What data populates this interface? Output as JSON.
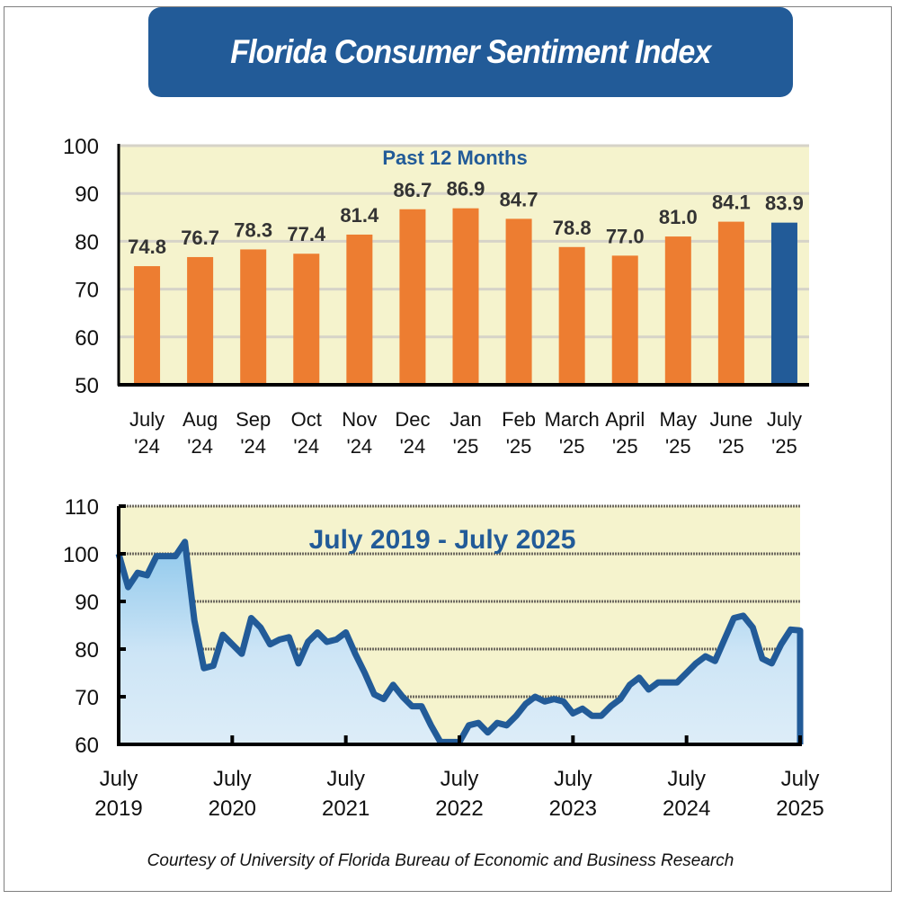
{
  "title": "Florida Consumer Sentiment Index",
  "credit": "Courtesy of University of Florida Bureau of Economic and Business Research",
  "colors": {
    "title_bg": "#225b98",
    "bar": "#ed7d31",
    "bar_highlight": "#225b98",
    "plot_bg": "#f5f3cd",
    "line": "#225b98",
    "area_top": "#9cd0ef",
    "area_bottom": "#dcecf8"
  },
  "chart_data": [
    {
      "type": "bar",
      "title": "Past 12 Months",
      "categories": [
        "July '24",
        "Aug '24",
        "Sep '24",
        "Oct '24",
        "Nov '24",
        "Dec '24",
        "Jan '25",
        "Feb '25",
        "March '25",
        "April '25",
        "May '25",
        "June '25",
        "July '25"
      ],
      "category_lines": [
        [
          "July",
          "'24"
        ],
        [
          "Aug",
          "'24"
        ],
        [
          "Sep",
          "'24"
        ],
        [
          "Oct",
          "'24"
        ],
        [
          "Nov",
          "'24"
        ],
        [
          "Dec",
          "'24"
        ],
        [
          "Jan",
          "'25"
        ],
        [
          "Feb",
          "'25"
        ],
        [
          "March",
          "'25"
        ],
        [
          "April",
          "'25"
        ],
        [
          "May",
          "'25"
        ],
        [
          "June",
          "'25"
        ],
        [
          "July",
          "'25"
        ]
      ],
      "values": [
        74.8,
        76.7,
        78.3,
        77.4,
        81.4,
        86.7,
        86.9,
        84.7,
        78.8,
        77.0,
        81.0,
        84.1,
        83.9
      ],
      "value_labels": [
        "74.8",
        "76.7",
        "78.3",
        "77.4",
        "81.4",
        "86.7",
        "86.9",
        "84.7",
        "78.8",
        "77.0",
        "81.0",
        "84.1",
        "83.9"
      ],
      "highlight_index": 12,
      "ylim": [
        50,
        100
      ],
      "yticks": [
        50,
        60,
        70,
        80,
        90,
        100
      ],
      "xlabel": "",
      "ylabel": "",
      "grid": true
    },
    {
      "type": "area",
      "title": "July 2019 - July 2025",
      "x_start": "July 2019",
      "x_end": "July 2025",
      "x_frequency": "monthly",
      "values": [
        100.0,
        93.0,
        96.0,
        95.5,
        99.5,
        99.5,
        99.5,
        102.5,
        86.0,
        76.0,
        76.5,
        83.0,
        81.0,
        79.0,
        86.5,
        84.5,
        81.0,
        82.0,
        82.5,
        77.0,
        81.5,
        83.5,
        81.5,
        82.0,
        83.5,
        79.0,
        75.0,
        70.5,
        69.5,
        72.5,
        70.0,
        68.0,
        68.0,
        64.0,
        60.5,
        60.5,
        60.5,
        64.0,
        64.5,
        62.5,
        64.5,
        64.0,
        66.0,
        68.5,
        70.0,
        69.0,
        69.5,
        69.0,
        66.5,
        67.5,
        66.0,
        66.0,
        68.0,
        69.5,
        72.5,
        74.0,
        71.5,
        73.0,
        73.0,
        73.0,
        75.0,
        77.0,
        78.5,
        77.5,
        82.0,
        86.5,
        87.0,
        84.5,
        78.0,
        77.0,
        81.0,
        84.1,
        83.9
      ],
      "xtick_labels": [
        [
          "July",
          "2019"
        ],
        [
          "July",
          "2020"
        ],
        [
          "July",
          "2021"
        ],
        [
          "July",
          "2022"
        ],
        [
          "July",
          "2023"
        ],
        [
          "July",
          "2024"
        ],
        [
          "July",
          "2025"
        ]
      ],
      "ylim": [
        60,
        110
      ],
      "yticks": [
        60,
        70,
        80,
        90,
        100,
        110
      ],
      "xlabel": "",
      "ylabel": "",
      "grid": true
    }
  ]
}
